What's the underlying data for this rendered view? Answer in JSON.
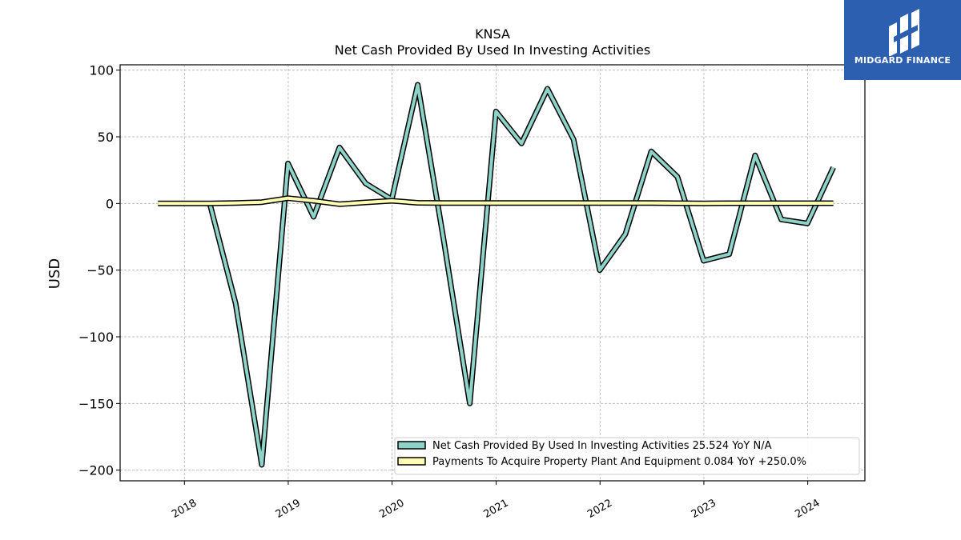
{
  "chart_data": {
    "type": "line",
    "title": "KNSA",
    "subtitle": "Net Cash Provided By Used In Investing Activities",
    "xlabel": "",
    "ylabel": "USD",
    "ylim": [
      -208,
      104
    ],
    "xlim": [
      "2017-05-20",
      "2024-07-20"
    ],
    "yticks": [
      100,
      50,
      0,
      -50,
      -100,
      -150,
      -200
    ],
    "ytick_labels": [
      "100",
      "50",
      "0",
      "−50",
      "−100",
      "−150",
      "−200"
    ],
    "xticks": [
      "2018-01-01",
      "2019-01-01",
      "2020-01-01",
      "2021-01-01",
      "2022-01-01",
      "2023-01-01",
      "2024-01-01"
    ],
    "xtick_labels": [
      "2018",
      "2019",
      "2020",
      "2021",
      "2022",
      "2023",
      "2024"
    ],
    "grid": true,
    "legend_position": "bottom-right",
    "series": [
      {
        "name": "Net Cash Provided By Used In Investing Activities  25.524 YoY N/A",
        "color": "#8dd3c7",
        "points": [
          [
            "2018-03-31",
            0
          ],
          [
            "2018-06-30",
            -75
          ],
          [
            "2018-09-30",
            -196
          ],
          [
            "2018-12-31",
            30
          ],
          [
            "2019-03-31",
            -10
          ],
          [
            "2019-06-30",
            42
          ],
          [
            "2019-09-30",
            15
          ],
          [
            "2019-12-31",
            3
          ],
          [
            "2020-03-31",
            89
          ],
          [
            "2020-06-30",
            -27
          ],
          [
            "2020-09-30",
            -150
          ],
          [
            "2020-12-31",
            69
          ],
          [
            "2021-03-31",
            45
          ],
          [
            "2021-06-30",
            86
          ],
          [
            "2021-09-30",
            48
          ],
          [
            "2021-12-31",
            -50
          ],
          [
            "2022-03-31",
            -23
          ],
          [
            "2022-06-30",
            39
          ],
          [
            "2022-09-30",
            20
          ],
          [
            "2022-12-31",
            -43
          ],
          [
            "2023-03-31",
            -38
          ],
          [
            "2023-06-30",
            36
          ],
          [
            "2023-09-30",
            -12
          ],
          [
            "2023-12-31",
            -15
          ],
          [
            "2024-03-31",
            27
          ]
        ]
      },
      {
        "name": "Payments To Acquire Property Plant And Equipment  0.084 YoY +250.0%",
        "color": "#ffffb3",
        "points": [
          [
            "2017-09-30",
            0
          ],
          [
            "2017-12-31",
            0
          ],
          [
            "2018-03-31",
            0
          ],
          [
            "2018-06-30",
            0.3
          ],
          [
            "2018-09-30",
            1
          ],
          [
            "2018-12-31",
            4
          ],
          [
            "2019-03-31",
            2
          ],
          [
            "2019-06-30",
            -0.5
          ],
          [
            "2019-09-30",
            0.8
          ],
          [
            "2019-12-31",
            2
          ],
          [
            "2020-03-31",
            0.5
          ],
          [
            "2020-06-30",
            0.3
          ],
          [
            "2020-09-30",
            0.3
          ],
          [
            "2020-12-31",
            0.3
          ],
          [
            "2021-03-31",
            0.3
          ],
          [
            "2021-06-30",
            0.3
          ],
          [
            "2021-09-30",
            0.3
          ],
          [
            "2021-12-31",
            0.4
          ],
          [
            "2022-03-31",
            0.4
          ],
          [
            "2022-06-30",
            0.3
          ],
          [
            "2022-09-30",
            0.2
          ],
          [
            "2022-12-31",
            0.1
          ],
          [
            "2023-03-31",
            0.2
          ],
          [
            "2023-06-30",
            0.2
          ],
          [
            "2023-09-30",
            0.2
          ],
          [
            "2023-12-31",
            0.2
          ],
          [
            "2024-03-31",
            0.2
          ]
        ]
      }
    ]
  },
  "logo": {
    "text": "MIDGARD FINANCE",
    "background": "#2d5fb0"
  }
}
